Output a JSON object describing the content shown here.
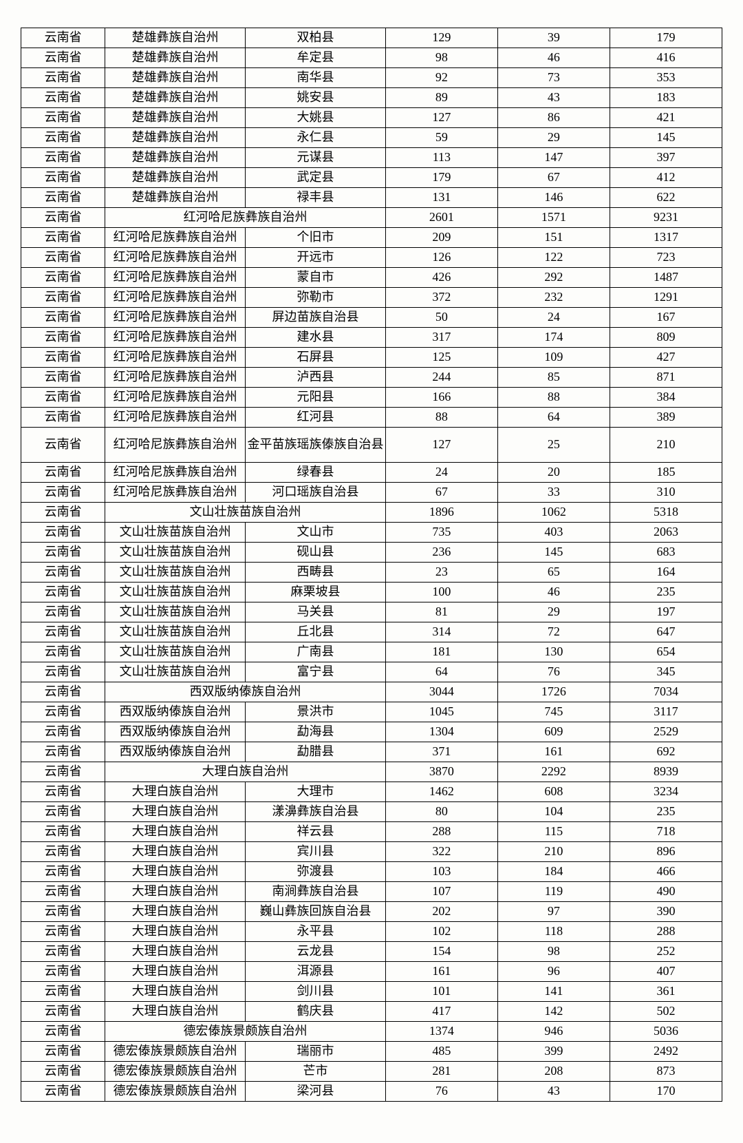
{
  "table": {
    "background_color": "#fdfdfb",
    "border_color": "#000000",
    "text_color": "#000000",
    "font_size_pt": 14,
    "col_classes": [
      "province",
      "prefecture",
      "county",
      "n1",
      "n2",
      "n3"
    ],
    "rows": [
      {
        "cells": [
          "云南省",
          "楚雄彝族自治州",
          "双柏县",
          "129",
          "39",
          "179"
        ]
      },
      {
        "cells": [
          "云南省",
          "楚雄彝族自治州",
          "牟定县",
          "98",
          "46",
          "416"
        ]
      },
      {
        "cells": [
          "云南省",
          "楚雄彝族自治州",
          "南华县",
          "92",
          "73",
          "353"
        ]
      },
      {
        "cells": [
          "云南省",
          "楚雄彝族自治州",
          "姚安县",
          "89",
          "43",
          "183"
        ]
      },
      {
        "cells": [
          "云南省",
          "楚雄彝族自治州",
          "大姚县",
          "127",
          "86",
          "421"
        ]
      },
      {
        "cells": [
          "云南省",
          "楚雄彝族自治州",
          "永仁县",
          "59",
          "29",
          "145"
        ]
      },
      {
        "cells": [
          "云南省",
          "楚雄彝族自治州",
          "元谋县",
          "113",
          "147",
          "397"
        ]
      },
      {
        "cells": [
          "云南省",
          "楚雄彝族自治州",
          "武定县",
          "179",
          "67",
          "412"
        ]
      },
      {
        "cells": [
          "云南省",
          "楚雄彝族自治州",
          "禄丰县",
          "131",
          "146",
          "622"
        ]
      },
      {
        "merge": true,
        "cells": [
          "云南省",
          "红河哈尼族彝族自治州",
          "2601",
          "1571",
          "9231"
        ]
      },
      {
        "cells": [
          "云南省",
          "红河哈尼族彝族自治州",
          "个旧市",
          "209",
          "151",
          "1317"
        ]
      },
      {
        "cells": [
          "云南省",
          "红河哈尼族彝族自治州",
          "开远市",
          "126",
          "122",
          "723"
        ]
      },
      {
        "cells": [
          "云南省",
          "红河哈尼族彝族自治州",
          "蒙自市",
          "426",
          "292",
          "1487"
        ]
      },
      {
        "cells": [
          "云南省",
          "红河哈尼族彝族自治州",
          "弥勒市",
          "372",
          "232",
          "1291"
        ]
      },
      {
        "cells": [
          "云南省",
          "红河哈尼族彝族自治州",
          "屏边苗族自治县",
          "50",
          "24",
          "167"
        ]
      },
      {
        "cells": [
          "云南省",
          "红河哈尼族彝族自治州",
          "建水县",
          "317",
          "174",
          "809"
        ]
      },
      {
        "cells": [
          "云南省",
          "红河哈尼族彝族自治州",
          "石屏县",
          "125",
          "109",
          "427"
        ]
      },
      {
        "cells": [
          "云南省",
          "红河哈尼族彝族自治州",
          "泸西县",
          "244",
          "85",
          "871"
        ]
      },
      {
        "cells": [
          "云南省",
          "红河哈尼族彝族自治州",
          "元阳县",
          "166",
          "88",
          "384"
        ]
      },
      {
        "cells": [
          "云南省",
          "红河哈尼族彝族自治州",
          "红河县",
          "88",
          "64",
          "389"
        ]
      },
      {
        "tall": true,
        "cells": [
          "云南省",
          "红河哈尼族彝族自治州",
          "金平苗族瑶族傣族自治县",
          "127",
          "25",
          "210"
        ]
      },
      {
        "cells": [
          "云南省",
          "红河哈尼族彝族自治州",
          "绿春县",
          "24",
          "20",
          "185"
        ]
      },
      {
        "cells": [
          "云南省",
          "红河哈尼族彝族自治州",
          "河口瑶族自治县",
          "67",
          "33",
          "310"
        ]
      },
      {
        "merge": true,
        "cells": [
          "云南省",
          "文山壮族苗族自治州",
          "1896",
          "1062",
          "5318"
        ]
      },
      {
        "cells": [
          "云南省",
          "文山壮族苗族自治州",
          "文山市",
          "735",
          "403",
          "2063"
        ]
      },
      {
        "cells": [
          "云南省",
          "文山壮族苗族自治州",
          "砚山县",
          "236",
          "145",
          "683"
        ]
      },
      {
        "cells": [
          "云南省",
          "文山壮族苗族自治州",
          "西畴县",
          "23",
          "65",
          "164"
        ]
      },
      {
        "cells": [
          "云南省",
          "文山壮族苗族自治州",
          "麻栗坡县",
          "100",
          "46",
          "235"
        ]
      },
      {
        "cells": [
          "云南省",
          "文山壮族苗族自治州",
          "马关县",
          "81",
          "29",
          "197"
        ]
      },
      {
        "cells": [
          "云南省",
          "文山壮族苗族自治州",
          "丘北县",
          "314",
          "72",
          "647"
        ]
      },
      {
        "cells": [
          "云南省",
          "文山壮族苗族自治州",
          "广南县",
          "181",
          "130",
          "654"
        ]
      },
      {
        "cells": [
          "云南省",
          "文山壮族苗族自治州",
          "富宁县",
          "64",
          "76",
          "345"
        ]
      },
      {
        "merge": true,
        "cells": [
          "云南省",
          "西双版纳傣族自治州",
          "3044",
          "1726",
          "7034"
        ]
      },
      {
        "cells": [
          "云南省",
          "西双版纳傣族自治州",
          "景洪市",
          "1045",
          "745",
          "3117"
        ]
      },
      {
        "cells": [
          "云南省",
          "西双版纳傣族自治州",
          "勐海县",
          "1304",
          "609",
          "2529"
        ]
      },
      {
        "cells": [
          "云南省",
          "西双版纳傣族自治州",
          "勐腊县",
          "371",
          "161",
          "692"
        ]
      },
      {
        "merge": true,
        "cells": [
          "云南省",
          "大理白族自治州",
          "3870",
          "2292",
          "8939"
        ]
      },
      {
        "cells": [
          "云南省",
          "大理白族自治州",
          "大理市",
          "1462",
          "608",
          "3234"
        ]
      },
      {
        "cells": [
          "云南省",
          "大理白族自治州",
          "漾濞彝族自治县",
          "80",
          "104",
          "235"
        ]
      },
      {
        "cells": [
          "云南省",
          "大理白族自治州",
          "祥云县",
          "288",
          "115",
          "718"
        ]
      },
      {
        "cells": [
          "云南省",
          "大理白族自治州",
          "宾川县",
          "322",
          "210",
          "896"
        ]
      },
      {
        "cells": [
          "云南省",
          "大理白族自治州",
          "弥渡县",
          "103",
          "184",
          "466"
        ]
      },
      {
        "cells": [
          "云南省",
          "大理白族自治州",
          "南涧彝族自治县",
          "107",
          "119",
          "490"
        ]
      },
      {
        "cells": [
          "云南省",
          "大理白族自治州",
          "巍山彝族回族自治县",
          "202",
          "97",
          "390"
        ]
      },
      {
        "cells": [
          "云南省",
          "大理白族自治州",
          "永平县",
          "102",
          "118",
          "288"
        ]
      },
      {
        "cells": [
          "云南省",
          "大理白族自治州",
          "云龙县",
          "154",
          "98",
          "252"
        ]
      },
      {
        "cells": [
          "云南省",
          "大理白族自治州",
          "洱源县",
          "161",
          "96",
          "407"
        ]
      },
      {
        "cells": [
          "云南省",
          "大理白族自治州",
          "剑川县",
          "101",
          "141",
          "361"
        ]
      },
      {
        "cells": [
          "云南省",
          "大理白族自治州",
          "鹤庆县",
          "417",
          "142",
          "502"
        ]
      },
      {
        "merge": true,
        "cells": [
          "云南省",
          "德宏傣族景颇族自治州",
          "1374",
          "946",
          "5036"
        ]
      },
      {
        "cells": [
          "云南省",
          "德宏傣族景颇族自治州",
          "瑞丽市",
          "485",
          "399",
          "2492"
        ]
      },
      {
        "cells": [
          "云南省",
          "德宏傣族景颇族自治州",
          "芒市",
          "281",
          "208",
          "873"
        ]
      },
      {
        "cells": [
          "云南省",
          "德宏傣族景颇族自治州",
          "梁河县",
          "76",
          "43",
          "170"
        ]
      }
    ]
  }
}
